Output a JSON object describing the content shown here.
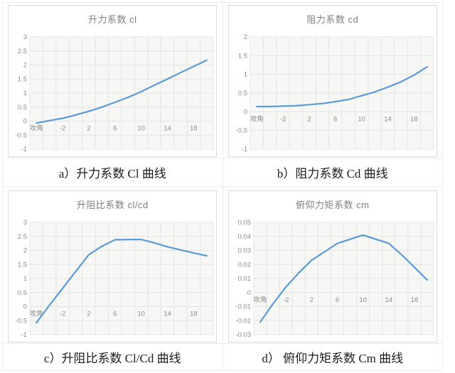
{
  "style": {
    "line_color": "#5B9BD5",
    "grid_color": "#e4e4e4",
    "plot_bg": "#f7f7f5",
    "axis_text_color": "#8c8c8c",
    "title_color": "#7f7f7f",
    "chart_border_color": "#d9d9d9"
  },
  "chart_data": [
    {
      "type": "line",
      "title": "升力系数 cl",
      "caption": "a）升力系数 Cl 曲线",
      "xlabel": "攻角",
      "ylabel": "",
      "legend": "none",
      "grid": true,
      "x": [
        -6,
        -4,
        -2,
        0,
        2,
        4,
        6,
        8,
        10,
        12,
        14,
        16,
        18,
        20
      ],
      "values": [
        -0.07,
        0.02,
        0.1,
        0.22,
        0.35,
        0.5,
        0.67,
        0.85,
        1.05,
        1.28,
        1.5,
        1.73,
        1.95,
        2.17
      ],
      "ylim": [
        -1,
        3
      ],
      "y_ticks": [
        3,
        2.5,
        2,
        1.5,
        1,
        0.5,
        0,
        -0.5,
        -1
      ],
      "y_tick_labels": [
        "3",
        "2.5",
        "2",
        "1.5",
        "1",
        "0.5",
        "0",
        "-0.5",
        "-1"
      ],
      "x_tick_labels": [
        "攻角",
        "-2",
        "2",
        "6",
        "10",
        "14",
        "18"
      ],
      "x_tick_indices": [
        0,
        2,
        4,
        6,
        8,
        10,
        12
      ]
    },
    {
      "type": "line",
      "title": "阻力系数 cd",
      "caption": "b）阻力系数 Cd 曲线",
      "xlabel": "攻角",
      "ylabel": "",
      "legend": "none",
      "grid": true,
      "x": [
        -6,
        -4,
        -2,
        0,
        2,
        4,
        6,
        8,
        10,
        12,
        14,
        16,
        18,
        20
      ],
      "values": [
        0.14,
        0.14,
        0.15,
        0.16,
        0.19,
        0.22,
        0.27,
        0.33,
        0.43,
        0.53,
        0.66,
        0.8,
        0.98,
        1.2
      ],
      "ylim": [
        -1,
        2
      ],
      "y_ticks": [
        2,
        1.5,
        1,
        0.5,
        0,
        -0.5,
        -1
      ],
      "y_tick_labels": [
        "2",
        "1.5",
        "1",
        "0.5",
        "0",
        "-0.5",
        "-1"
      ],
      "x_tick_labels": [
        "攻角",
        "-2",
        "2",
        "6",
        "10",
        "14",
        "18"
      ],
      "x_tick_indices": [
        0,
        2,
        4,
        6,
        8,
        10,
        12
      ]
    },
    {
      "type": "line",
      "title": "升阻比系数 cl/cd",
      "caption": "c）升阻比系数 Cl/Cd 曲线",
      "xlabel": "攻角",
      "ylabel": "",
      "legend": "none",
      "grid": true,
      "x": [
        -6,
        -4,
        -2,
        0,
        2,
        4,
        6,
        8,
        10,
        12,
        14,
        16,
        18,
        20
      ],
      "values": [
        -0.58,
        0.05,
        0.65,
        1.25,
        1.85,
        2.15,
        2.38,
        2.39,
        2.39,
        2.27,
        2.13,
        2.02,
        1.91,
        1.81
      ],
      "ylim": [
        -1,
        3
      ],
      "y_ticks": [
        3,
        2.5,
        2,
        1.5,
        1,
        0.5,
        0,
        -0.5,
        -1
      ],
      "y_tick_labels": [
        "3",
        "2.5",
        "2",
        "1.5",
        "1",
        "0.5",
        "0",
        "-0.5",
        "-1"
      ],
      "x_tick_labels": [
        "攻角",
        "-2",
        "2",
        "6",
        "10",
        "14",
        "18"
      ],
      "x_tick_indices": [
        0,
        2,
        4,
        6,
        8,
        10,
        12
      ]
    },
    {
      "type": "line",
      "title": "俯仰力矩系数 cm",
      "caption": "d） 俯仰力矩系数 Cm 曲线",
      "xlabel": "攻角",
      "ylabel": "",
      "legend": "none",
      "grid": true,
      "x": [
        -6,
        -4,
        -2,
        0,
        2,
        4,
        6,
        8,
        10,
        12,
        14,
        16,
        18,
        20
      ],
      "values": [
        -0.021,
        -0.008,
        0.004,
        0.014,
        0.023,
        0.029,
        0.035,
        0.038,
        0.041,
        0.038,
        0.035,
        0.027,
        0.018,
        0.009
      ],
      "ylim": [
        -0.03,
        0.05
      ],
      "y_ticks": [
        0.05,
        0.04,
        0.03,
        0.02,
        0.01,
        0,
        -0.01,
        -0.02,
        -0.03
      ],
      "y_tick_labels": [
        "0.05",
        "0.04",
        "0.03",
        "0.02",
        "0.01",
        "0",
        "-0.01",
        "-0.02",
        "-0.03"
      ],
      "x_tick_labels": [
        "攻角",
        "-2",
        "2",
        "6",
        "10",
        "14",
        "18"
      ],
      "x_tick_indices": [
        0,
        2,
        4,
        6,
        8,
        10,
        12
      ]
    }
  ]
}
